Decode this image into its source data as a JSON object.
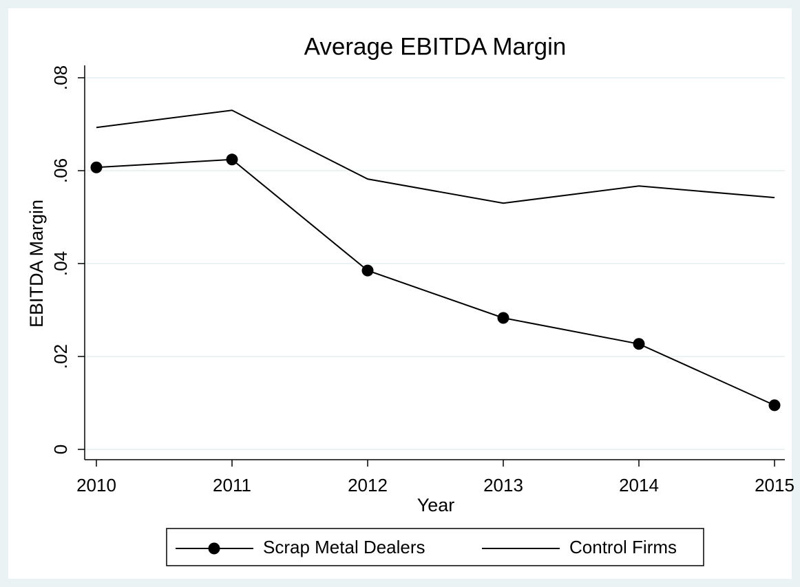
{
  "chart_data": {
    "type": "line",
    "title": "Average EBITDA Margin",
    "x_label": "Year",
    "y_label": "EBITDA Margin",
    "x": [
      2010,
      2011,
      2012,
      2013,
      2014,
      2015
    ],
    "xlim": [
      2010,
      2015
    ],
    "xticks": [
      2010,
      2011,
      2012,
      2013,
      2014,
      2015
    ],
    "ylim": [
      0,
      0.08
    ],
    "yticks": [
      0,
      {
        "value": 0.02,
        "label": ".02"
      },
      {
        "value": 0.04,
        "label": ".04"
      },
      {
        "value": 0.06,
        "label": ".06"
      },
      {
        "value": 0.08,
        "label": ".08"
      }
    ],
    "grid": true,
    "legend": "bottom",
    "series": [
      {
        "name": "Scrap Metal Dealers",
        "color": "#000000",
        "markers": true,
        "values": [
          0.0607,
          0.0624,
          0.0385,
          0.0283,
          0.0227,
          0.0095
        ]
      },
      {
        "name": "Control Firms",
        "color": "#000000",
        "markers": false,
        "values": [
          0.0693,
          0.073,
          0.0582,
          0.053,
          0.0567,
          0.0542
        ]
      }
    ]
  }
}
